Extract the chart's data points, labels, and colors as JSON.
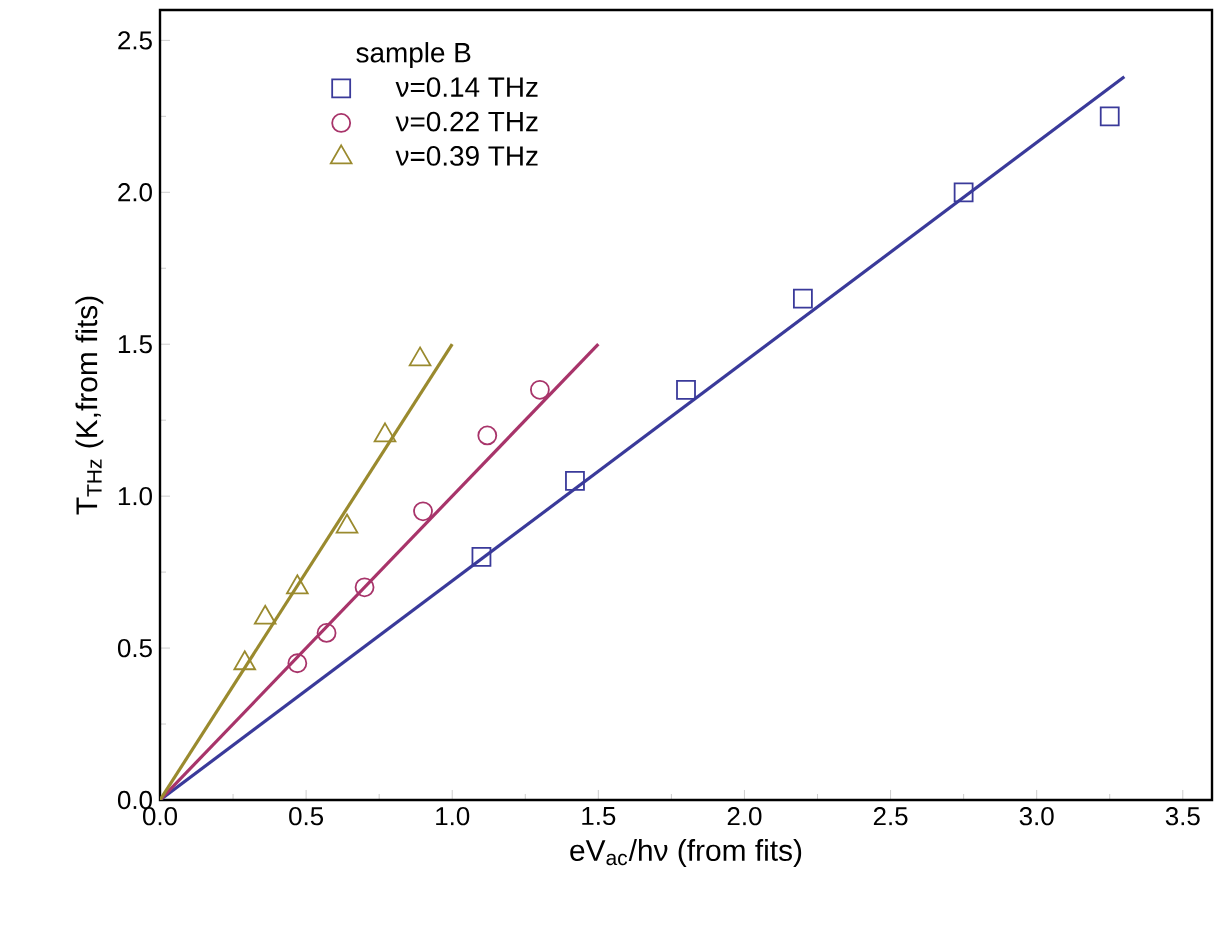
{
  "chart_data": {
    "type": "scatter",
    "xlabel": "eV$_{ac}$/hν (from fits)",
    "ylabel": "T$_{THz}$ (K,from fits)",
    "legend_title": "sample B",
    "legend": "top left",
    "grid": false,
    "xlim": [
      0,
      3.6
    ],
    "ylim": [
      0,
      2.6
    ],
    "xticks": [
      {
        "value": 0,
        "label": "0.0"
      },
      {
        "value": 0.5,
        "label": "0.5"
      },
      {
        "value": 1,
        "label": "1.0"
      },
      {
        "value": 1.5,
        "label": "1.5"
      },
      {
        "value": 2,
        "label": "2.0"
      },
      {
        "value": 2.5,
        "label": "2.5"
      },
      {
        "value": 3,
        "label": "3.0"
      },
      {
        "value": 3.5,
        "label": "3.5"
      }
    ],
    "yticks": [
      {
        "value": 0,
        "label": "0.0"
      },
      {
        "value": 0.5,
        "label": "0.5"
      },
      {
        "value": 1,
        "label": "1.0"
      },
      {
        "value": 1.5,
        "label": "1.5"
      },
      {
        "value": 2,
        "label": "2.0"
      },
      {
        "value": 2.5,
        "label": "2.5"
      }
    ],
    "series": [
      {
        "name": "ν=0.14 THz",
        "marker": "square",
        "color": "#3a3a9a",
        "x": [
          1.1,
          1.42,
          1.8,
          2.2,
          2.75,
          3.25
        ],
        "values": [
          0.8,
          1.05,
          1.35,
          1.65,
          2.0,
          2.25
        ]
      },
      {
        "name": "ν=0.22 THz",
        "marker": "circle",
        "color": "#a8346a",
        "x": [
          0.47,
          0.57,
          0.7,
          0.9,
          1.12,
          1.3
        ],
        "values": [
          0.45,
          0.55,
          0.7,
          0.95,
          1.2,
          1.35
        ]
      },
      {
        "name": "ν=0.39 THz",
        "marker": "triangle",
        "color": "#9a8a2e",
        "x": [
          0.29,
          0.36,
          0.47,
          0.64,
          0.77,
          0.89
        ],
        "values": [
          0.45,
          0.6,
          0.7,
          0.9,
          1.2,
          1.45
        ]
      },
      {
        "type": "line",
        "marker": "none",
        "color": "#3a3a9a",
        "x": [
          0,
          3.3
        ],
        "values": [
          0,
          2.38
        ]
      },
      {
        "type": "line",
        "marker": "none",
        "color": "#a8346a",
        "x": [
          0,
          1.5
        ],
        "values": [
          0,
          1.5
        ]
      },
      {
        "type": "line",
        "marker": "none",
        "color": "#9a8a2e",
        "x": [
          0,
          1.0
        ],
        "values": [
          0,
          1.5
        ]
      }
    ]
  }
}
